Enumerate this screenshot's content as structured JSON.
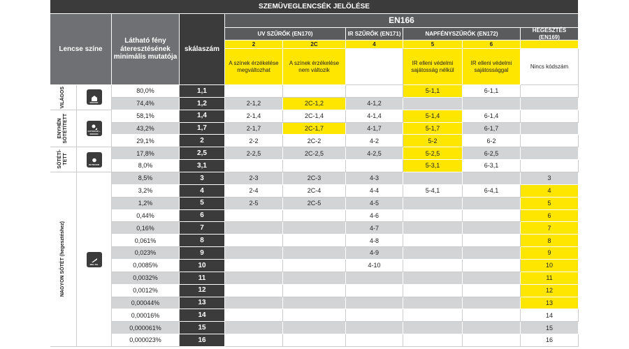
{
  "header": {
    "title": "SZEMÜVEGLENCSÉK JELÖLÉSE",
    "standard": "EN166"
  },
  "columns": {
    "lens_color": "Lencse színe",
    "transmittance": "Látható fény áteresztésének minimális mutatója",
    "scale": "skálaszám"
  },
  "groups": [
    {
      "name": "UV SZŰRŐK (EN170)",
      "filters": [
        {
          "code": "2",
          "description": "A színek érzékelése megváltozhat"
        },
        {
          "code": "2C",
          "description": "A színek érzékelése nem változik"
        }
      ]
    },
    {
      "name": "IR SZŰRŐK (EN171)",
      "filters": [
        {
          "code": "4",
          "description": null
        }
      ]
    },
    {
      "name": "NAPFÉNYSZŰRŐK (EN172)",
      "filters": [
        {
          "code": "5",
          "description": "IR elleni védelmi sajátosság nélkül"
        },
        {
          "code": "6",
          "description": "IR elleni védelmi sajátossággal"
        }
      ]
    },
    {
      "name": "HEGESZTÉS (EN169)",
      "filters": [
        {
          "code": null,
          "description": "Nincs kódszám"
        }
      ]
    }
  ],
  "categories": [
    {
      "label": "VILÁGOS",
      "icon": "INDOOR",
      "rows": [
        {
          "transmittance": "80,0%",
          "scale": "1,1",
          "cells": [
            null,
            null,
            null,
            {
              "text": "5-1,1",
              "highlight": true
            },
            "6-1,1",
            null
          ]
        },
        {
          "transmittance": "74,4%",
          "scale": "1,2",
          "cells": [
            "2-1,2",
            {
              "text": "2C-1,2",
              "highlight": true
            },
            "4-1,2",
            null,
            null,
            null
          ]
        }
      ]
    },
    {
      "label": "ENYHÉN SÖTÉTÍTETT",
      "icon": "OUTDOOR + INDOOR",
      "rows": [
        {
          "transmittance": "58,1%",
          "scale": "1,4",
          "cells": [
            "2-1,4",
            "2C-1,4",
            "4-1,4",
            {
              "text": "5-1,4",
              "highlight": true
            },
            "6-1,4",
            null
          ]
        },
        {
          "transmittance": "43,2%",
          "scale": "1,7",
          "cells": [
            "2-1,7",
            {
              "text": "2C-1,7",
              "highlight": true
            },
            "4-1,7",
            {
              "text": "5-1,7",
              "highlight": true
            },
            "6-1,7",
            null
          ]
        },
        {
          "transmittance": "29,1%",
          "scale": "2",
          "cells": [
            "2-2",
            "2C-2",
            "4-2",
            {
              "text": "5-2",
              "highlight": true
            },
            "6-2",
            null
          ]
        }
      ]
    },
    {
      "label": "SÖTÉTÍ-TETT",
      "icon": "OUTDOOR",
      "rows": [
        {
          "transmittance": "17,8%",
          "scale": "2,5",
          "cells": [
            "2-2,5",
            "2C-2,5",
            "4-2,5",
            {
              "text": "5-2,5",
              "highlight": true
            },
            "6-2,5",
            null
          ]
        },
        {
          "transmittance": "8,0%",
          "scale": "3,1",
          "cells": [
            null,
            null,
            null,
            {
              "text": "5-3,1",
              "highlight": true
            },
            "6-3,1",
            null
          ]
        }
      ]
    },
    {
      "label": "NAGYON SÖTÉT (hegesztéshez)",
      "icon": "MIG-TIG",
      "rows": [
        {
          "transmittance": "8,5%",
          "scale": "3",
          "cells": [
            "2-3",
            "2C-3",
            "4-3",
            null,
            null,
            "3"
          ]
        },
        {
          "transmittance": "3,2%",
          "scale": "4",
          "cells": [
            "2-4",
            "2C-4",
            "4-4",
            "5-4,1",
            "6-4,1",
            {
              "text": "4",
              "highlight": true
            }
          ]
        },
        {
          "transmittance": "1,2%",
          "scale": "5",
          "cells": [
            "2-5",
            "2C-5",
            "4-5",
            null,
            null,
            {
              "text": "5",
              "highlight": true
            }
          ]
        },
        {
          "transmittance": "0,44%",
          "scale": "6",
          "cells": [
            null,
            null,
            "4-6",
            null,
            null,
            {
              "text": "6",
              "highlight": true
            }
          ]
        },
        {
          "transmittance": "0,16%",
          "scale": "7",
          "cells": [
            null,
            null,
            "4-7",
            null,
            null,
            {
              "text": "7",
              "highlight": true
            }
          ]
        },
        {
          "transmittance": "0,061%",
          "scale": "8",
          "cells": [
            null,
            null,
            "4-8",
            null,
            null,
            {
              "text": "8",
              "highlight": true
            }
          ]
        },
        {
          "transmittance": "0,023%",
          "scale": "9",
          "cells": [
            null,
            null,
            "4-9",
            null,
            null,
            {
              "text": "9",
              "highlight": true
            }
          ]
        },
        {
          "transmittance": "0,0085%",
          "scale": "10",
          "cells": [
            null,
            null,
            "4-10",
            null,
            null,
            {
              "text": "10",
              "highlight": true
            }
          ]
        },
        {
          "transmittance": "0,0032%",
          "scale": "11",
          "cells": [
            null,
            null,
            null,
            null,
            null,
            {
              "text": "11",
              "highlight": true
            }
          ]
        },
        {
          "transmittance": "0,0012%",
          "scale": "12",
          "cells": [
            null,
            null,
            null,
            null,
            null,
            {
              "text": "12",
              "highlight": true
            }
          ]
        },
        {
          "transmittance": "0,00044%",
          "scale": "13",
          "cells": [
            null,
            null,
            null,
            null,
            null,
            {
              "text": "13",
              "highlight": true
            }
          ]
        },
        {
          "transmittance": "0,00016%",
          "scale": "14",
          "cells": [
            null,
            null,
            null,
            null,
            null,
            "14"
          ]
        },
        {
          "transmittance": "0,000061%",
          "scale": "15",
          "cells": [
            null,
            null,
            null,
            null,
            null,
            "15"
          ]
        },
        {
          "transmittance": "0,000023%",
          "scale": "16",
          "cells": [
            null,
            null,
            null,
            null,
            null,
            "16"
          ]
        }
      ]
    }
  ]
}
